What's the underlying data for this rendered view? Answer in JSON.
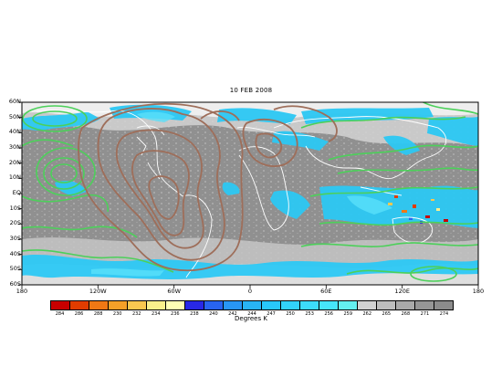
{
  "title": "10 FEB 2008",
  "lat_labels": [
    "60N",
    "50N",
    "40N",
    "30N",
    "20N",
    "10N",
    "EQ",
    "10S",
    "20S",
    "30S",
    "40S",
    "50S",
    "60S"
  ],
  "lon_labels": [
    "180",
    "120W",
    "60W",
    "0",
    "60E",
    "120E",
    "180"
  ],
  "colorbar": {
    "colors": [
      "#c80000",
      "#e13c00",
      "#f07814",
      "#f5a028",
      "#fac850",
      "#faf08c",
      "#ffffb4",
      "#2828e6",
      "#2864f0",
      "#2896f5",
      "#28b4f5",
      "#28c8fa",
      "#32d2fa",
      "#3cdcfa",
      "#46e6fa",
      "#64f0f0",
      "#d2d2d2",
      "#bebebe",
      "#aaaaaa",
      "#969696",
      "#8c8c8c"
    ],
    "ticks": [
      "284",
      "286",
      "288",
      "230",
      "232",
      "234",
      "236",
      "238",
      "240",
      "242",
      "244",
      "247",
      "250",
      "253",
      "256",
      "259",
      "262",
      "265",
      "268",
      "271",
      "274"
    ],
    "label": "Degrees K"
  }
}
